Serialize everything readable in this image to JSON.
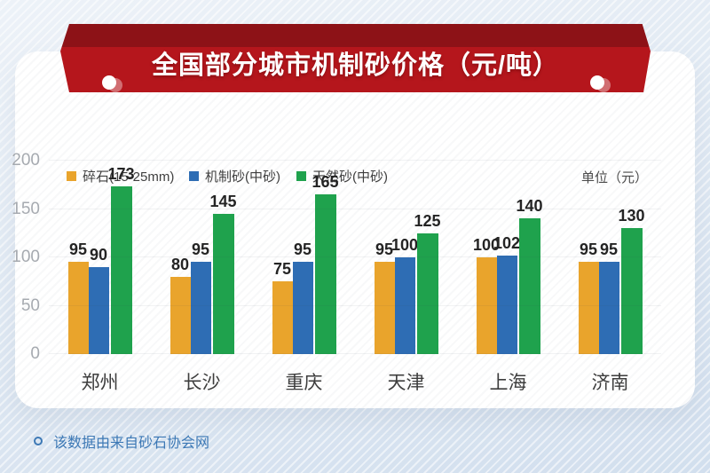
{
  "banner": {
    "title": "全国部分城市机制砂价格（元/吨）",
    "band_color": "#b5161c",
    "fold_color": "#8d1217"
  },
  "legend": {
    "items": [
      {
        "label": "碎石(15-25mm)",
        "color": "#e9a42c"
      },
      {
        "label": "机制砂(中砂)",
        "color": "#2e6db4"
      },
      {
        "label": "天然砂(中砂)",
        "color": "#1fa24d"
      }
    ],
    "unit_label": "单位（元）"
  },
  "chart_data": {
    "type": "bar",
    "title": "全国部分城市机制砂价格（元/吨）",
    "categories": [
      "郑州",
      "长沙",
      "重庆",
      "天津",
      "上海",
      "济南"
    ],
    "series": [
      {
        "name": "碎石(15-25mm)",
        "color": "#e9a42c",
        "values": [
          95,
          80,
          75,
          95,
          100,
          95
        ]
      },
      {
        "name": "机制砂(中砂)",
        "color": "#2e6db4",
        "values": [
          90,
          95,
          95,
          100,
          102,
          95
        ]
      },
      {
        "name": "天然砂(中砂)",
        "color": "#1fa24d",
        "values": [
          173,
          145,
          165,
          125,
          140,
          130
        ]
      }
    ],
    "xlabel": "",
    "ylabel": "",
    "ylim": [
      0,
      200
    ],
    "y_ticks": [
      200,
      150,
      100,
      50,
      0
    ],
    "grid": true,
    "legend_position": "top",
    "value_labels": true
  },
  "footer": {
    "note": "该数据由来自砂石协会网"
  }
}
